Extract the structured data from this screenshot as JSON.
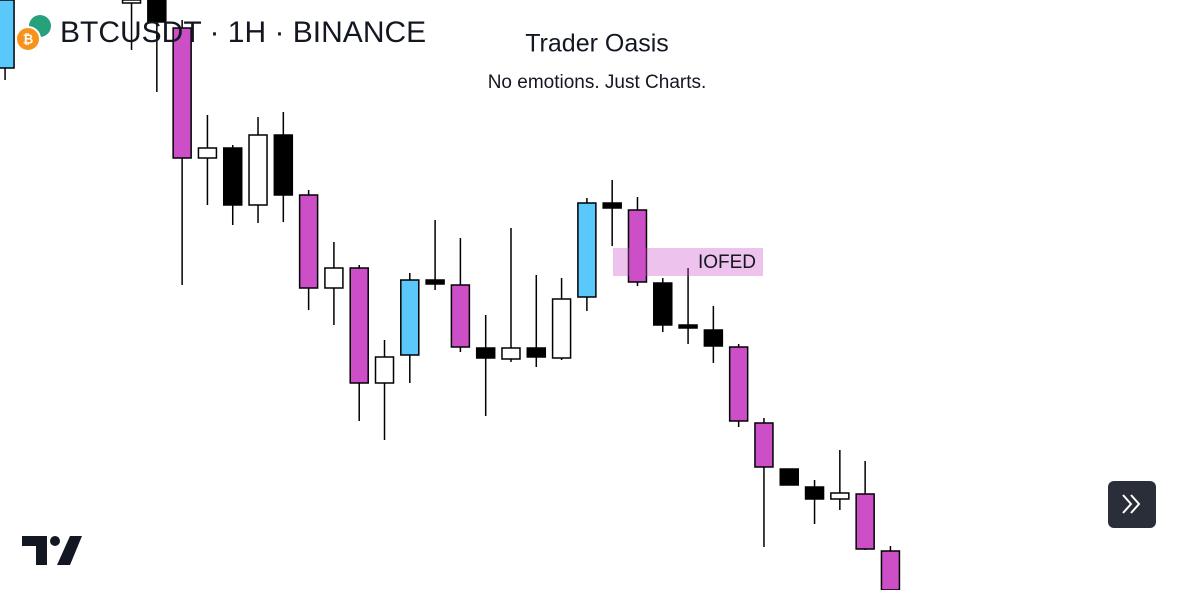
{
  "chart_data": {
    "type": "candlestick",
    "symbol": "BTCUSDT · 1H · BINANCE",
    "title": "Trader Oasis",
    "subtitle": "No emotions. Just Charts.",
    "annotation": "IOFED",
    "x": [
      0,
      5,
      6,
      7,
      8,
      9,
      10,
      11,
      12,
      13,
      14,
      15,
      16,
      17,
      18,
      19,
      20,
      21,
      22,
      23,
      24,
      25,
      26,
      27,
      28,
      29,
      30,
      31,
      32,
      33,
      34,
      35
    ],
    "open": [
      522,
      588,
      590,
      562,
      432,
      442,
      385,
      455,
      395,
      302,
      322,
      207,
      235,
      310,
      305,
      242,
      231,
      242,
      232,
      293,
      387,
      380,
      307,
      265,
      260,
      243,
      167,
      121,
      103,
      91,
      96,
      39
    ],
    "high": [
      590,
      590,
      590,
      570,
      475,
      445,
      473,
      478,
      400,
      348,
      325,
      250,
      317,
      370,
      352,
      275,
      362,
      315,
      312,
      392,
      410,
      393,
      312,
      322,
      284,
      246,
      172,
      121,
      110,
      140,
      129,
      44
    ],
    "low": [
      510,
      540,
      498,
      305,
      385,
      365,
      367,
      368,
      280,
      265,
      169,
      150,
      207,
      300,
      238,
      174,
      228,
      223,
      230,
      279,
      344,
      304,
      258,
      246,
      227,
      163,
      43,
      105,
      66,
      80,
      40,
      0
    ],
    "close": [
      590,
      590,
      568,
      432,
      442,
      385,
      455,
      395,
      302,
      322,
      207,
      233,
      310,
      306,
      243,
      232,
      242,
      233,
      291,
      387,
      382,
      308,
      265,
      262,
      244,
      169,
      123,
      105,
      91,
      97,
      41,
      0
    ],
    "colors": [
      "#5ac8fa",
      "#ffffff",
      "#000000",
      "#cc4fc8",
      "#ffffff",
      "#000000",
      "#ffffff",
      "#000000",
      "#cc4fc8",
      "#ffffff",
      "#cc4fc8",
      "#ffffff",
      "#5ac8fa",
      "#000000",
      "#cc4fc8",
      "#000000",
      "#ffffff",
      "#000000",
      "#ffffff",
      "#5ac8fa",
      "#000000",
      "#cc4fc8",
      "#000000",
      "#000000",
      "#000000",
      "#cc4fc8",
      "#cc4fc8",
      "#000000",
      "#000000",
      "#ffffff",
      "#cc4fc8",
      "#cc4fc8"
    ],
    "xlim": [
      -0.2,
      47
    ],
    "ylim": [
      0,
      590
    ]
  }
}
